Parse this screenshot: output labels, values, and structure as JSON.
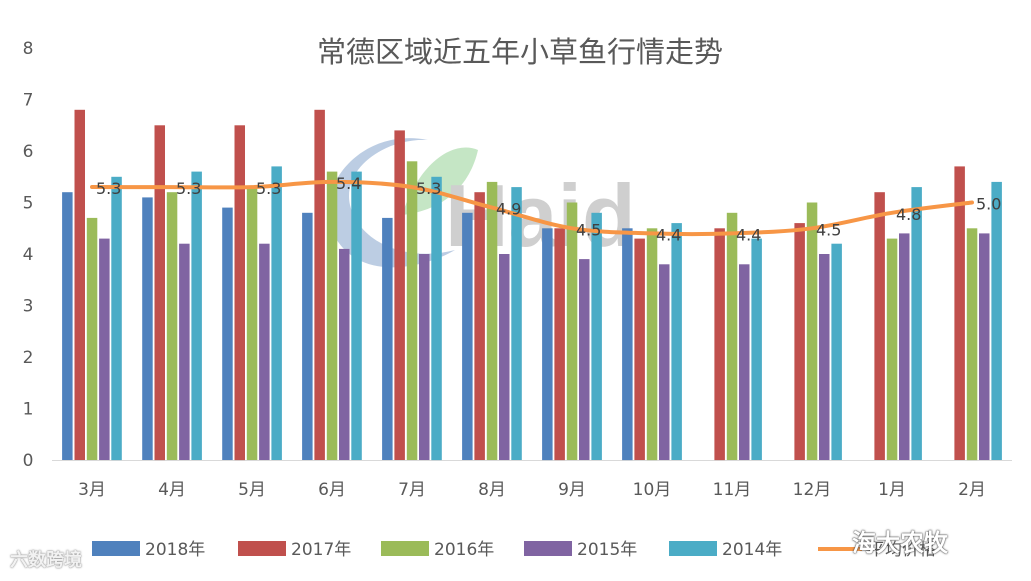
{
  "chart_data": {
    "type": "bar",
    "title": "常德区域近五年小草鱼行情走势",
    "categories": [
      "3月",
      "4月",
      "5月",
      "6月",
      "7月",
      "8月",
      "9月",
      "10月",
      "11月",
      "12月",
      "1月",
      "2月"
    ],
    "ylim": [
      0,
      8
    ],
    "yticks": [
      "0",
      "1",
      "2",
      "3",
      "4",
      "5",
      "6",
      "7",
      "8"
    ],
    "grid": false,
    "legend_position": "bottom",
    "series": [
      {
        "name": "2018年",
        "color": "#4f81bd",
        "values": [
          5.2,
          5.1,
          4.9,
          4.8,
          4.7,
          4.8,
          4.5,
          4.5,
          null,
          null,
          null,
          null
        ]
      },
      {
        "name": "2017年",
        "color": "#c0504d",
        "values": [
          6.8,
          6.5,
          6.5,
          6.8,
          6.4,
          5.2,
          4.5,
          4.3,
          4.5,
          4.6,
          5.2,
          5.7
        ]
      },
      {
        "name": "2016年",
        "color": "#9bbb59",
        "values": [
          4.7,
          5.2,
          5.3,
          5.6,
          5.8,
          5.4,
          5.0,
          4.5,
          4.8,
          5.0,
          4.3,
          4.5
        ]
      },
      {
        "name": "2015年",
        "color": "#8064a2",
        "values": [
          4.3,
          4.2,
          4.2,
          4.1,
          4.0,
          4.0,
          3.9,
          3.8,
          3.8,
          4.0,
          4.4,
          4.4
        ]
      },
      {
        "name": "2014年",
        "color": "#4bacc6",
        "values": [
          5.5,
          5.6,
          5.7,
          5.6,
          5.5,
          5.3,
          4.8,
          4.6,
          4.3,
          4.2,
          5.3,
          5.4
        ]
      }
    ],
    "line": {
      "name": "平均价格",
      "color": "#f79646",
      "values": [
        5.3,
        5.3,
        5.3,
        5.4,
        5.3,
        4.9,
        4.5,
        4.4,
        4.4,
        4.5,
        4.8,
        5.0
      ],
      "labels": [
        "5.3",
        "5.3",
        "5.3",
        "5.4",
        "5.3",
        "4.9",
        "4.5",
        "4.4",
        "4.4",
        "4.5",
        "4.8",
        "5.0"
      ]
    }
  },
  "watermarks": {
    "brand": "Haid",
    "bottom_left": "六数跨境",
    "bottom_right": "海大农牧"
  }
}
